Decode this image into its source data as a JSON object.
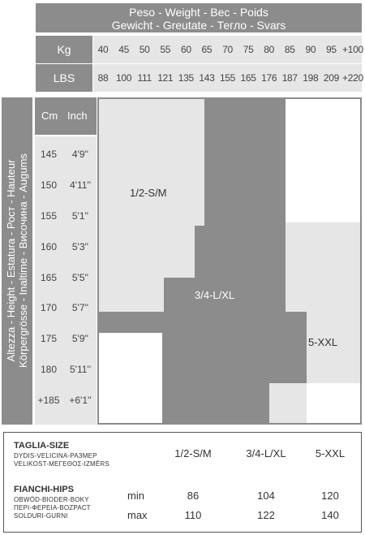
{
  "header": {
    "title_line1": "Peso - Weight - Bec - Poids",
    "title_line2": "Gewicht - Greutate - Тегло - Svars",
    "kg_label": "Kg",
    "lbs_label": "LBS",
    "kg": [
      "40",
      "45",
      "50",
      "55",
      "60",
      "65",
      "70",
      "75",
      "80",
      "85",
      "90",
      "95",
      "+100"
    ],
    "lbs": [
      "88",
      "100",
      "111",
      "121",
      "135",
      "143",
      "155",
      "165",
      "176",
      "187",
      "198",
      "209",
      "+220"
    ]
  },
  "height_axis": {
    "title_line1": "Altezza - Height - Estatura - Рост - Hauteur",
    "title_line2": "Körpergrösse - Inaltime - Височина - Augums",
    "cm_label": "Cm",
    "inch_label": "Inch",
    "rows": [
      {
        "cm": "145",
        "inch": "4'9''"
      },
      {
        "cm": "150",
        "inch": "4'11''"
      },
      {
        "cm": "155",
        "inch": "5'1''"
      },
      {
        "cm": "160",
        "inch": "5'3''"
      },
      {
        "cm": "165",
        "inch": "5'5''"
      },
      {
        "cm": "170",
        "inch": "5'7''"
      },
      {
        "cm": "175",
        "inch": "5'9''"
      },
      {
        "cm": "180",
        "inch": "5'11''"
      },
      {
        "cm": "+185",
        "inch": "+6'1''"
      }
    ]
  },
  "zones": {
    "small": "1/2-S/M",
    "large": "3/4-L/XL",
    "xxl": "5-XXL"
  },
  "colors": {
    "dark": "#8c8c8c",
    "light": "#e6e6e6"
  },
  "table": {
    "taglia_title": "TAGLIA-SIZE",
    "taglia_sub1": "DYDIS-VELICINA-РАЗМЕР",
    "taglia_sub2": "VELIKOST-ΜΕΓΕΘΟΣ-IZMĒRS",
    "sizes": [
      "1/2-S/M",
      "3/4-L/XL",
      "5-XXL"
    ],
    "hips_title": "FIANCHI-HIPS",
    "hips_sub1": "OBWÓD-BIODER-BOKY",
    "hips_sub2": "ΠΕΡΙ-ΦΕΡΕΙΑ-ΒΟΖΡΑСТ",
    "hips_sub3": "SOLDURI-GURNI",
    "min_label": "min",
    "max_label": "max",
    "min": [
      "86",
      "104",
      "120"
    ],
    "max": [
      "110",
      "122",
      "140"
    ]
  }
}
